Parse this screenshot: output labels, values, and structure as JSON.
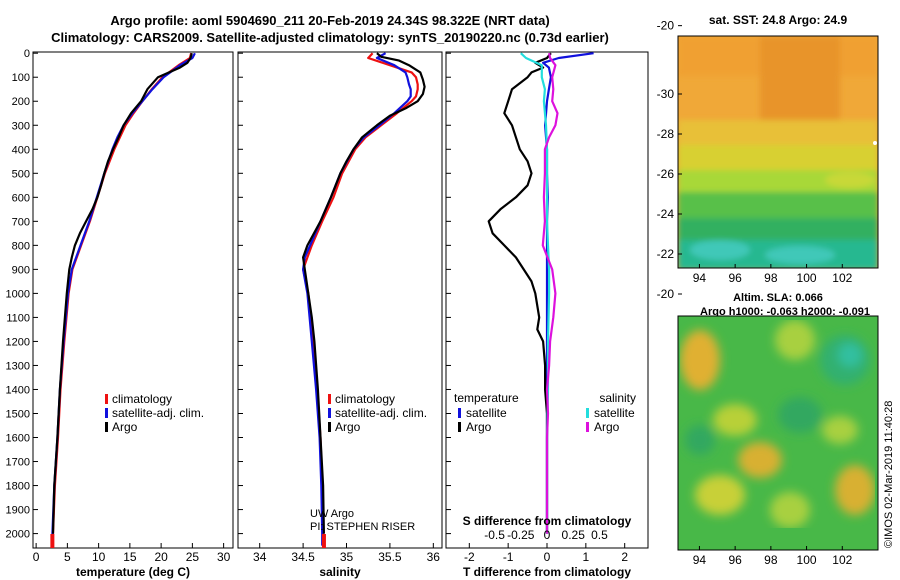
{
  "header": {
    "title_line1": "Argo profile: aoml 5904690_211 20-Feb-2019 24.34S 98.322E (NRT data)",
    "title_line2": "Climatology: CARS2009. Satellite-adjusted climatology: synTS_20190220.nc (0.73d earlier)"
  },
  "maps": {
    "sst_title": "sat. SST: 24.8 Argo: 24.9",
    "sla_title1": "Altim. SLA: 0.066",
    "sla_title2": "Argo h1000: -0.063 h2000: -0.091",
    "lon_ticks": [
      "94",
      "96",
      "98",
      "100",
      "102"
    ],
    "lat_ticks": [
      "-20",
      "-22",
      "-24",
      "-26",
      "-28",
      "-30"
    ]
  },
  "footer": {
    "stamp": "©IMOS 02-Mar-2019 11:40:28"
  },
  "colors": {
    "climatology": "#ee1111",
    "satellite": "#1111dd",
    "argo": "#000000",
    "temp_diff": "#000000",
    "sal_satellite": "#22dddd",
    "sal_argo": "#dd11dd"
  },
  "chart_data": [
    {
      "type": "line",
      "name": "temperature",
      "xlabel": "temperature (deg C)",
      "ylabel": "depth",
      "xlim": [
        -0.5,
        31.5
      ],
      "ylim": [
        2060,
        -5
      ],
      "xticks": [
        "0",
        "5",
        "10",
        "15",
        "20",
        "25",
        "30"
      ],
      "xtick_values": [
        0,
        5,
        10,
        15,
        20,
        25,
        30
      ],
      "yticks": [
        "0",
        "100",
        "200",
        "300",
        "400",
        "500",
        "600",
        "700",
        "800",
        "900",
        "1000",
        "1100",
        "1200",
        "1300",
        "1400",
        "1500",
        "1600",
        "1700",
        "1800",
        "1900",
        "2000"
      ],
      "ytick_values": [
        0,
        100,
        200,
        300,
        400,
        500,
        600,
        700,
        800,
        900,
        1000,
        1100,
        1200,
        1300,
        1400,
        1500,
        1600,
        1700,
        1800,
        1900,
        2000
      ],
      "legend": [
        "climatology",
        "satellite-adj. clim.",
        "Argo"
      ],
      "series": [
        {
          "name": "climatology",
          "depth": [
            0,
            20,
            50,
            100,
            150,
            200,
            250,
            300,
            350,
            400,
            500,
            600,
            700,
            800,
            900,
            1000,
            1200,
            1400,
            1600,
            1800,
            2000,
            2050
          ],
          "values": [
            24.8,
            24.6,
            22.8,
            20.2,
            18.5,
            17.0,
            15.6,
            14.3,
            13.4,
            12.5,
            11.0,
            9.8,
            8.6,
            7.2,
            5.8,
            5.2,
            4.5,
            3.9,
            3.5,
            3.0,
            2.7,
            2.6
          ]
        },
        {
          "name": "satellite-adj. clim.",
          "depth": [
            0,
            20,
            50,
            100,
            150,
            200,
            250,
            300,
            350,
            400,
            500,
            600,
            700,
            800,
            900,
            1000,
            1200,
            1400,
            1600,
            1800,
            2000,
            2050
          ],
          "values": [
            25.4,
            25.0,
            23.0,
            20.4,
            18.6,
            17.0,
            15.4,
            14.0,
            13.0,
            12.2,
            10.9,
            9.7,
            8.5,
            7.1,
            5.7,
            5.1,
            4.4,
            3.8,
            3.4,
            2.9,
            2.6,
            2.5
          ]
        },
        {
          "name": "Argo",
          "depth": [
            0,
            20,
            40,
            60,
            100,
            150,
            200,
            250,
            300,
            350,
            400,
            450,
            500,
            550,
            600,
            650,
            700,
            750,
            800,
            850,
            900,
            1000,
            1100,
            1200,
            1400,
            1600,
            1800,
            2000
          ],
          "values": [
            24.9,
            24.7,
            24.2,
            23.0,
            19.5,
            17.8,
            16.8,
            15.2,
            14.0,
            13.2,
            12.3,
            11.5,
            10.9,
            10.4,
            9.8,
            9.0,
            8.0,
            7.0,
            6.2,
            5.7,
            5.3,
            4.9,
            4.6,
            4.3,
            3.8,
            3.4,
            2.9,
            2.7
          ]
        }
      ]
    },
    {
      "type": "line",
      "name": "salinity",
      "xlabel": "salinity",
      "ylabel": "depth",
      "xlim": [
        33.75,
        36.1
      ],
      "ylim": [
        2060,
        -5
      ],
      "xticks": [
        "34",
        "34.5",
        "35",
        "35.5",
        "36"
      ],
      "xtick_values": [
        34,
        34.5,
        35,
        35.5,
        36
      ],
      "legend": [
        "climatology",
        "satellite-adj. clim.",
        "Argo"
      ],
      "annotations": [
        "UW Argo",
        "PI: STEPHEN RISER"
      ],
      "series": [
        {
          "name": "climatology",
          "depth": [
            0,
            20,
            50,
            80,
            100,
            130,
            150,
            180,
            200,
            250,
            300,
            350,
            400,
            500,
            600,
            700,
            800,
            850,
            900,
            1000,
            1200,
            1400,
            1600,
            1800,
            2000,
            2050
          ],
          "values": [
            35.3,
            35.25,
            35.5,
            35.75,
            35.8,
            35.82,
            35.82,
            35.8,
            35.75,
            35.58,
            35.4,
            35.22,
            35.1,
            34.95,
            34.85,
            34.72,
            34.6,
            34.55,
            34.5,
            34.56,
            34.62,
            34.66,
            34.7,
            34.72,
            34.73,
            34.74
          ]
        },
        {
          "name": "satellite-adj. clim.",
          "depth": [
            0,
            20,
            50,
            80,
            100,
            130,
            150,
            180,
            200,
            250,
            300,
            350,
            400,
            500,
            600,
            700,
            800,
            850,
            900,
            1000,
            1200,
            1400,
            1600,
            1800,
            2000,
            2050
          ],
          "values": [
            35.45,
            35.35,
            35.55,
            35.68,
            35.7,
            35.72,
            35.74,
            35.74,
            35.7,
            35.55,
            35.38,
            35.2,
            35.08,
            34.93,
            34.82,
            34.7,
            34.58,
            34.52,
            34.5,
            34.55,
            34.6,
            34.65,
            34.69,
            34.71,
            34.72,
            34.72
          ]
        },
        {
          "name": "Argo",
          "depth": [
            0,
            15,
            30,
            50,
            80,
            110,
            140,
            170,
            200,
            230,
            260,
            300,
            350,
            400,
            450,
            500,
            600,
            700,
            800,
            850,
            900,
            1000,
            1100,
            1200,
            1400,
            1600,
            1800,
            2000
          ],
          "values": [
            35.35,
            35.4,
            35.6,
            35.72,
            35.85,
            35.88,
            35.9,
            35.88,
            35.82,
            35.68,
            35.5,
            35.35,
            35.18,
            35.08,
            35.0,
            34.93,
            34.82,
            34.7,
            34.55,
            34.5,
            34.52,
            34.56,
            34.6,
            34.63,
            34.67,
            34.7,
            34.73,
            34.74
          ]
        }
      ]
    },
    {
      "type": "line",
      "name": "difference",
      "xlabel": "T difference from climatology",
      "xlabel2": "S difference from climatology",
      "ylabel": "depth",
      "xlim": [
        -2.6,
        2.6
      ],
      "ylim": [
        2060,
        -5
      ],
      "xticks": [
        "-2",
        "-1",
        "0",
        "1",
        "2"
      ],
      "xtick_values": [
        -2,
        -1,
        0,
        1,
        2
      ],
      "sticks": [
        "-0.5",
        "-0.25",
        "0",
        "0.25",
        "0.5"
      ],
      "stick_values": [
        -0.5,
        -0.25,
        0,
        0.25,
        0.5
      ],
      "legend_temperature_title": "temperature",
      "legend_salinity_title": "salinity",
      "legend_temperature": [
        "satellite",
        "Argo"
      ],
      "legend_salinity": [
        "satellite",
        "Argo"
      ],
      "series": [
        {
          "name": "T satellite",
          "scale": "T",
          "depth": [
            0,
            20,
            40,
            60,
            100,
            150,
            200,
            300,
            400,
            500,
            600,
            700,
            800,
            900,
            1000,
            1200,
            1400,
            1600,
            1800,
            2000
          ],
          "values": [
            1.2,
            0.3,
            -0.1,
            0.05,
            0.1,
            0.05,
            0.0,
            -0.05,
            0.0,
            0.0,
            0.02,
            0.0,
            0.0,
            0.0,
            0.0,
            0.0,
            0.0,
            0.0,
            0.0,
            0.0
          ]
        },
        {
          "name": "T Argo",
          "scale": "T",
          "depth": [
            0,
            20,
            40,
            60,
            80,
            100,
            150,
            200,
            250,
            300,
            350,
            400,
            450,
            500,
            550,
            600,
            650,
            700,
            750,
            800,
            850,
            900,
            950,
            1000,
            1100,
            1150,
            1200,
            1300,
            1400,
            1500,
            1600,
            1800,
            2000
          ],
          "values": [
            0.1,
            0.0,
            -0.3,
            -0.1,
            -0.4,
            -0.5,
            -0.9,
            -1.0,
            -1.1,
            -0.9,
            -0.8,
            -0.7,
            -0.5,
            -0.4,
            -0.5,
            -0.8,
            -1.2,
            -1.5,
            -1.4,
            -1.1,
            -0.8,
            -0.6,
            -0.4,
            -0.3,
            -0.2,
            -0.25,
            -0.1,
            -0.05,
            -0.05,
            0.0,
            0.0,
            0.0,
            0.0
          ]
        },
        {
          "name": "S satellite",
          "scale": "S",
          "depth": [
            0,
            20,
            50,
            100,
            150,
            200,
            300,
            400,
            500,
            600,
            700,
            800,
            900,
            1000,
            1200,
            1400,
            1600,
            1800,
            2000
          ],
          "values": [
            -0.25,
            -0.2,
            -0.05,
            -0.05,
            -0.02,
            -0.03,
            -0.01,
            0.0,
            0.0,
            0.0,
            0.0,
            0.01,
            0.02,
            0.02,
            0.01,
            0.01,
            0.0,
            0.0,
            0.0
          ]
        },
        {
          "name": "S Argo",
          "scale": "S",
          "depth": [
            0,
            20,
            50,
            100,
            150,
            200,
            250,
            300,
            350,
            400,
            500,
            600,
            700,
            800,
            900,
            1000,
            1100,
            1200,
            1300,
            1400,
            1500,
            1600,
            1800,
            2000
          ],
          "values": [
            0.02,
            0.03,
            0.08,
            0.05,
            0.06,
            0.05,
            0.1,
            0.08,
            0.02,
            -0.02,
            -0.02,
            -0.03,
            -0.02,
            -0.04,
            0.05,
            0.08,
            0.06,
            0.03,
            0.02,
            0.0,
            0.01,
            0.0,
            0.0,
            0.0
          ]
        }
      ]
    }
  ]
}
